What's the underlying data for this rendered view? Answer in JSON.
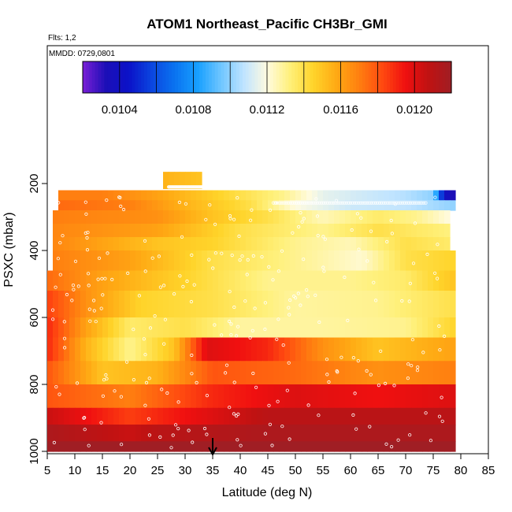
{
  "chart_data": {
    "type": "heatmap",
    "title": "ATOM1 Northeast_Pacific CH3Br_GMI",
    "flights_label": "Flts: 1,2",
    "dates_label": "MMDD: 0729,0801",
    "xlabel": "Latitude (deg N)",
    "ylabel": "PSXC (mbar)",
    "xlim": [
      5,
      85
    ],
    "ylim": [
      1000,
      0
    ],
    "x_ticks": [
      "5",
      "10",
      "15",
      "20",
      "25",
      "30",
      "35",
      "40",
      "45",
      "50",
      "55",
      "60",
      "65",
      "70",
      "75",
      "80",
      "85"
    ],
    "y_ticks": [
      "200",
      "400",
      "600",
      "800",
      "1000"
    ],
    "colorbar": {
      "range": [
        0.0102,
        0.0122
      ],
      "tick_labels": [
        "0.0104",
        "0.0108",
        "0.0112",
        "0.0116",
        "0.0120"
      ],
      "colors": [
        "#7a1fd6",
        "#1c0fb7",
        "#0b12c8",
        "#0b46e0",
        "#0a73f0",
        "#18a0ff",
        "#6fc6ff",
        "#c0e4ff",
        "#fffbe0",
        "#fff07a",
        "#ffd42a",
        "#ffaa14",
        "#ff7f10",
        "#ff4a10",
        "#f01010",
        "#c01212",
        "#a01e24"
      ]
    },
    "layers": [
      {
        "p": [
          220,
          250
        ],
        "x": [
          7,
          79
        ],
        "v": [
          [
            7,
            0.0117
          ],
          [
            15,
            0.0117
          ],
          [
            25,
            0.0116
          ],
          [
            40,
            0.0114
          ],
          [
            48,
            0.0113
          ],
          [
            55,
            0.01115
          ],
          [
            63,
            0.0111
          ],
          [
            70,
            0.01106
          ],
          [
            75,
            0.011
          ],
          [
            77,
            0.0104
          ],
          [
            79,
            0.0103
          ]
        ]
      },
      {
        "p": [
          250,
          280
        ],
        "x": [
          7,
          79
        ],
        "v": [
          [
            7,
            0.01175
          ],
          [
            20,
            0.0117
          ],
          [
            30,
            0.01155
          ],
          [
            42,
            0.0114
          ],
          [
            50,
            0.0112
          ],
          [
            60,
            0.0111
          ],
          [
            70,
            0.01108
          ],
          [
            79,
            0.011
          ]
        ]
      },
      {
        "p": [
          280,
          320
        ],
        "x": [
          6,
          78
        ],
        "v": [
          [
            6,
            0.0117
          ],
          [
            25,
            0.01165
          ],
          [
            35,
            0.0115
          ],
          [
            45,
            0.0114
          ],
          [
            55,
            0.01125
          ],
          [
            65,
            0.01135
          ],
          [
            72,
            0.0113
          ],
          [
            78,
            0.0112
          ]
        ]
      },
      {
        "p": [
          320,
          360
        ],
        "x": [
          6,
          78
        ],
        "v": [
          [
            6,
            0.01168
          ],
          [
            25,
            0.0116
          ],
          [
            40,
            0.0114
          ],
          [
            55,
            0.0113
          ],
          [
            65,
            0.0114
          ],
          [
            78,
            0.01132
          ]
        ]
      },
      {
        "p": [
          360,
          400
        ],
        "x": [
          6,
          78
        ],
        "v": [
          [
            6,
            0.01168
          ],
          [
            25,
            0.0115
          ],
          [
            35,
            0.01145
          ],
          [
            50,
            0.0113
          ],
          [
            60,
            0.01125
          ],
          [
            70,
            0.0114
          ],
          [
            78,
            0.01135
          ]
        ]
      },
      {
        "p": [
          400,
          460
        ],
        "x": [
          6,
          79
        ],
        "v": [
          [
            6,
            0.0117
          ],
          [
            20,
            0.0116
          ],
          [
            35,
            0.0114
          ],
          [
            50,
            0.0113
          ],
          [
            62,
            0.01122
          ],
          [
            70,
            0.0114
          ],
          [
            79,
            0.01145
          ]
        ]
      },
      {
        "p": [
          460,
          520
        ],
        "x": [
          5,
          79
        ],
        "v": [
          [
            5,
            0.01175
          ],
          [
            15,
            0.0116
          ],
          [
            30,
            0.01145
          ],
          [
            45,
            0.0113
          ],
          [
            60,
            0.0113
          ],
          [
            70,
            0.01135
          ],
          [
            79,
            0.0115
          ]
        ]
      },
      {
        "p": [
          520,
          600
        ],
        "x": [
          5,
          79
        ],
        "v": [
          [
            5,
            0.01185
          ],
          [
            12,
            0.01165
          ],
          [
            22,
            0.01145
          ],
          [
            35,
            0.0114
          ],
          [
            50,
            0.01128
          ],
          [
            65,
            0.0113
          ],
          [
            79,
            0.0114
          ]
        ]
      },
      {
        "p": [
          600,
          660
        ],
        "x": [
          5,
          79
        ],
        "v": [
          [
            5,
            0.0119
          ],
          [
            12,
            0.0116
          ],
          [
            20,
            0.01135
          ],
          [
            30,
            0.0114
          ],
          [
            40,
            0.01128
          ],
          [
            55,
            0.01128
          ],
          [
            70,
            0.0113
          ],
          [
            79,
            0.01145
          ]
        ]
      },
      {
        "p": [
          660,
          730
        ],
        "x": [
          5,
          79
        ],
        "v": [
          [
            5,
            0.0119
          ],
          [
            12,
            0.01155
          ],
          [
            20,
            0.0113
          ],
          [
            28,
            0.0115
          ],
          [
            34,
            0.012
          ],
          [
            45,
            0.0119
          ],
          [
            55,
            0.01165
          ],
          [
            65,
            0.0115
          ],
          [
            79,
            0.0116
          ]
        ]
      },
      {
        "p": [
          730,
          800
        ],
        "x": [
          5,
          79
        ],
        "v": [
          [
            5,
            0.0118
          ],
          [
            15,
            0.0115
          ],
          [
            25,
            0.01155
          ],
          [
            35,
            0.0118
          ],
          [
            50,
            0.01175
          ],
          [
            65,
            0.01165
          ],
          [
            79,
            0.0117
          ]
        ]
      },
      {
        "p": [
          800,
          870
        ],
        "x": [
          5,
          79
        ],
        "v": [
          [
            5,
            0.0118
          ],
          [
            20,
            0.0117
          ],
          [
            35,
            0.0119
          ],
          [
            50,
            0.012
          ],
          [
            65,
            0.01195
          ],
          [
            79,
            0.012
          ]
        ]
      },
      {
        "p": [
          870,
          920
        ],
        "x": [
          5,
          79
        ],
        "v": [
          [
            5,
            0.01205
          ],
          [
            20,
            0.01185
          ],
          [
            30,
            0.01195
          ],
          [
            45,
            0.0121
          ],
          [
            65,
            0.0121
          ],
          [
            79,
            0.0121
          ]
        ]
      },
      {
        "p": [
          920,
          970
        ],
        "x": [
          5,
          79
        ],
        "v": [
          [
            5,
            0.01215
          ],
          [
            20,
            0.01205
          ],
          [
            25,
            0.0121
          ],
          [
            45,
            0.01215
          ],
          [
            79,
            0.01215
          ]
        ]
      },
      {
        "p": [
          970,
          1000
        ],
        "x": [
          5,
          79
        ],
        "v": [
          [
            5,
            0.0122
          ],
          [
            79,
            0.0122
          ]
        ]
      },
      {
        "p": [
          165,
          215
        ],
        "x": [
          26,
          33
        ],
        "v": [
          [
            26,
            0.01155
          ],
          [
            33,
            0.0115
          ]
        ]
      }
    ],
    "marker_latitude": 35
  }
}
